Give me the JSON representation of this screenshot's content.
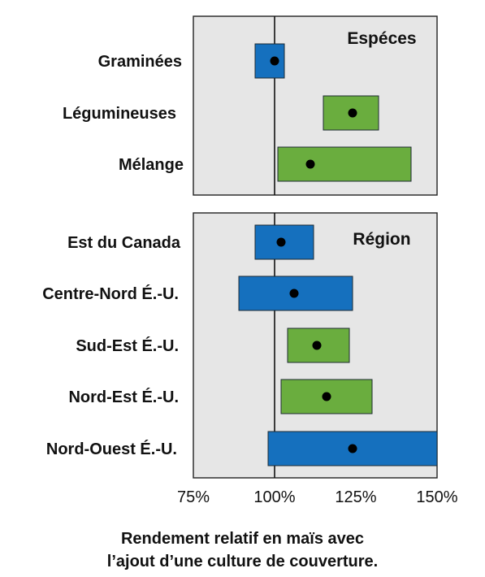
{
  "chart_data": {
    "type": "interval",
    "x_axis": {
      "min": 75,
      "max": 150,
      "ticks": [
        75,
        100,
        125,
        150
      ],
      "tick_labels": [
        "75%",
        "100%",
        "125%",
        "150%"
      ],
      "reference_line": 100,
      "label_lines": [
        "Rendement relatif en maïs avec",
        "l’ajout d’une culture de couverture."
      ]
    },
    "panels": [
      {
        "title": "Espéces",
        "rows": [
          {
            "label": "Graminées",
            "low": 94,
            "high": 103,
            "point": 100,
            "color": "#1570be"
          },
          {
            "label": "Légumineuses",
            "low": 115,
            "high": 132,
            "point": 124,
            "color": "#6aad3e"
          },
          {
            "label": "Mélange",
            "low": 101,
            "high": 142,
            "point": 111,
            "color": "#6aad3e"
          }
        ]
      },
      {
        "title": "Région",
        "rows": [
          {
            "label": "Est du Canada",
            "low": 94,
            "high": 112,
            "point": 102,
            "color": "#1570be"
          },
          {
            "label": "Centre-Nord É.-U.",
            "low": 89,
            "high": 124,
            "point": 106,
            "color": "#1570be"
          },
          {
            "label": "Sud-Est É.-U.",
            "low": 104,
            "high": 123,
            "point": 113,
            "color": "#6aad3e"
          },
          {
            "label": "Nord-Est É.-U.",
            "low": 102,
            "high": 130,
            "point": 116,
            "color": "#6aad3e"
          },
          {
            "label": "Nord-Ouest É.-U.",
            "low": 98,
            "high": 150,
            "point": 124,
            "color": "#1570be"
          }
        ]
      }
    ]
  }
}
